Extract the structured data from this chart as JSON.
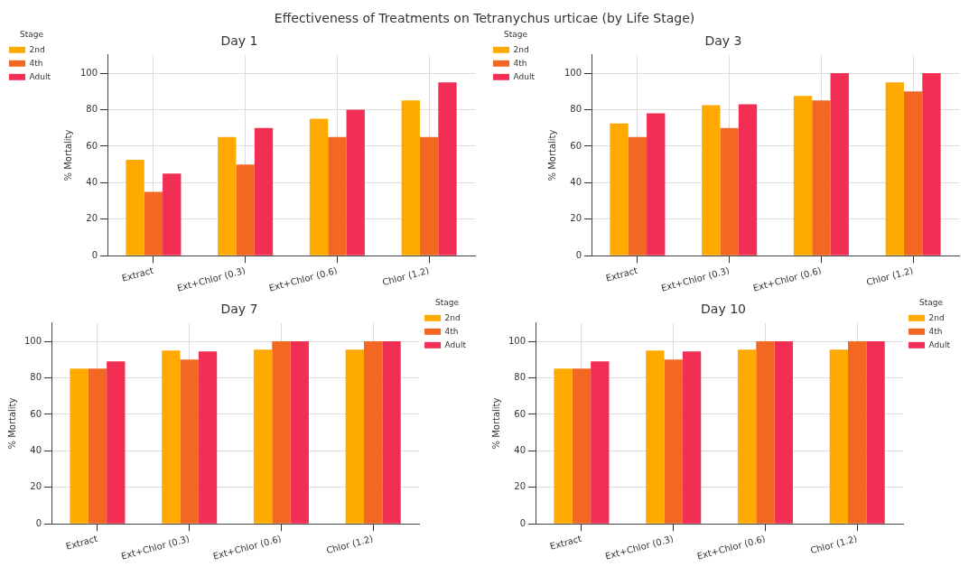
{
  "chart_data": [
    {
      "type": "other",
      "title": "Effectiveness of Treatments on Tetranychus urticae (by Life Stage)"
    },
    {
      "type": "bar",
      "title": "Day 1",
      "ylabel": "% Mortality",
      "legend_title": "Stage",
      "legend": "top left",
      "grid": true,
      "categories": [
        "Extract",
        "Ext+Chlor (0.3)",
        "Ext+Chlor (0.6)",
        "Chlor (1.2)"
      ],
      "ylim": [
        0,
        110
      ],
      "yticks": [
        0,
        20,
        40,
        60,
        80,
        100
      ],
      "series": [
        {
          "name": "2nd",
          "color": "#ffaa00",
          "values": [
            52.5,
            65,
            75,
            85
          ]
        },
        {
          "name": "4th",
          "color": "#f26722",
          "values": [
            35,
            50,
            65,
            65
          ]
        },
        {
          "name": "Adult",
          "color": "#f22e55",
          "values": [
            45,
            70,
            80,
            95
          ]
        }
      ]
    },
    {
      "type": "bar",
      "title": "Day 3",
      "ylabel": "% Mortality",
      "legend_title": "Stage",
      "legend": "top left",
      "grid": true,
      "categories": [
        "Extract",
        "Ext+Chlor (0.3)",
        "Ext+Chlor (0.6)",
        "Chlor (1.2)"
      ],
      "ylim": [
        0,
        110
      ],
      "yticks": [
        0,
        20,
        40,
        60,
        80,
        100
      ],
      "series": [
        {
          "name": "2nd",
          "color": "#ffaa00",
          "values": [
            72.5,
            82.5,
            87.5,
            95
          ]
        },
        {
          "name": "4th",
          "color": "#f26722",
          "values": [
            65,
            70,
            85,
            90
          ]
        },
        {
          "name": "Adult",
          "color": "#f22e55",
          "values": [
            78,
            83,
            100,
            100
          ]
        }
      ]
    },
    {
      "type": "bar",
      "title": "Day 7",
      "ylabel": "% Mortality",
      "legend_title": "Stage",
      "legend": "top right",
      "grid": true,
      "categories": [
        "Extract",
        "Ext+Chlor (0.3)",
        "Ext+Chlor (0.6)",
        "Chlor (1.2)"
      ],
      "ylim": [
        0,
        110
      ],
      "yticks": [
        0,
        20,
        40,
        60,
        80,
        100
      ],
      "series": [
        {
          "name": "2nd",
          "color": "#ffaa00",
          "values": [
            85,
            95,
            95.5,
            95.5
          ]
        },
        {
          "name": "4th",
          "color": "#f26722",
          "values": [
            85,
            90,
            100,
            100
          ]
        },
        {
          "name": "Adult",
          "color": "#f22e55",
          "values": [
            89,
            94.5,
            100,
            100
          ]
        }
      ]
    },
    {
      "type": "bar",
      "title": "Day 10",
      "ylabel": "% Mortality",
      "legend_title": "Stage",
      "legend": "top right",
      "grid": true,
      "categories": [
        "Extract",
        "Ext+Chlor (0.3)",
        "Ext+Chlor (0.6)",
        "Chlor (1.2)"
      ],
      "ylim": [
        0,
        110
      ],
      "yticks": [
        0,
        20,
        40,
        60,
        80,
        100
      ],
      "series": [
        {
          "name": "2nd",
          "color": "#ffaa00",
          "values": [
            85,
            95,
            95.5,
            95.5
          ]
        },
        {
          "name": "4th",
          "color": "#f26722",
          "values": [
            85,
            90,
            100,
            100
          ]
        },
        {
          "name": "Adult",
          "color": "#f22e55",
          "values": [
            89,
            94.5,
            100,
            100
          ]
        }
      ]
    }
  ]
}
